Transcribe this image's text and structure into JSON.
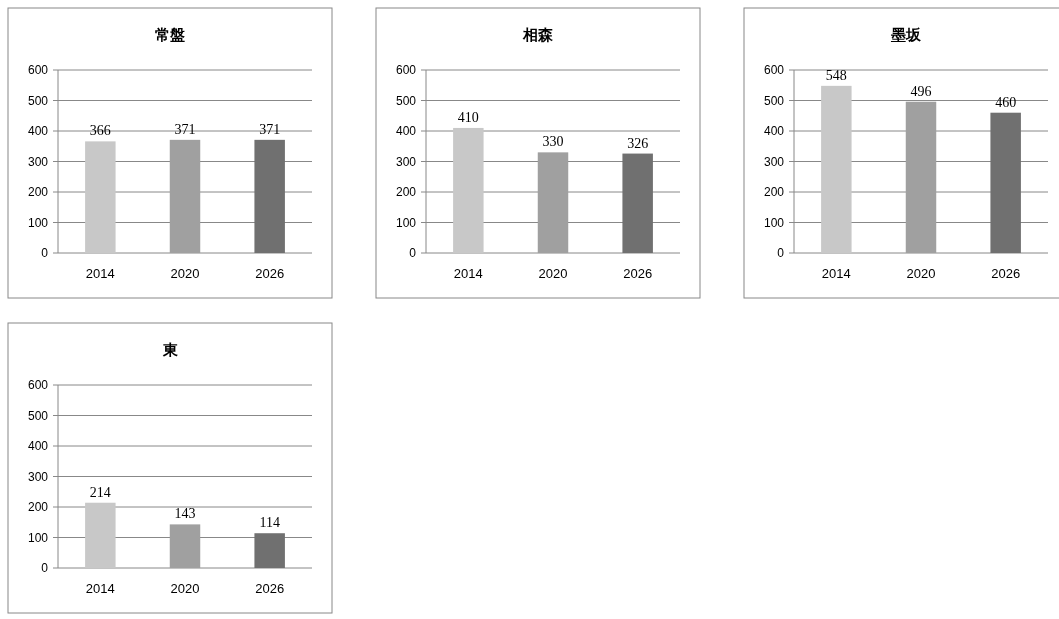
{
  "chart_data": [
    {
      "type": "bar",
      "title": "常盤",
      "categories": [
        "2014",
        "2020",
        "2026"
      ],
      "values": [
        366,
        371,
        371
      ],
      "colors": [
        "#c8c8c8",
        "#a0a0a0",
        "#707070"
      ],
      "ylim": [
        0,
        600
      ],
      "yticks": [
        0,
        100,
        200,
        300,
        400,
        500,
        600
      ],
      "grid": "y",
      "data_labels": true
    },
    {
      "type": "bar",
      "title": "相森",
      "categories": [
        "2014",
        "2020",
        "2026"
      ],
      "values": [
        410,
        330,
        326
      ],
      "colors": [
        "#c8c8c8",
        "#a0a0a0",
        "#707070"
      ],
      "ylim": [
        0,
        600
      ],
      "yticks": [
        0,
        100,
        200,
        300,
        400,
        500,
        600
      ],
      "grid": "y",
      "data_labels": true
    },
    {
      "type": "bar",
      "title": "墨坂",
      "categories": [
        "2014",
        "2020",
        "2026"
      ],
      "values": [
        548,
        496,
        460
      ],
      "colors": [
        "#c8c8c8",
        "#a0a0a0",
        "#707070"
      ],
      "ylim": [
        0,
        600
      ],
      "yticks": [
        0,
        100,
        200,
        300,
        400,
        500,
        600
      ],
      "grid": "y",
      "data_labels": true
    },
    {
      "type": "bar",
      "title": "東",
      "categories": [
        "2014",
        "2020",
        "2026"
      ],
      "values": [
        214,
        143,
        114
      ],
      "colors": [
        "#c8c8c8",
        "#a0a0a0",
        "#707070"
      ],
      "ylim": [
        0,
        600
      ],
      "yticks": [
        0,
        100,
        200,
        300,
        400,
        500,
        600
      ],
      "grid": "y",
      "data_labels": true
    }
  ]
}
